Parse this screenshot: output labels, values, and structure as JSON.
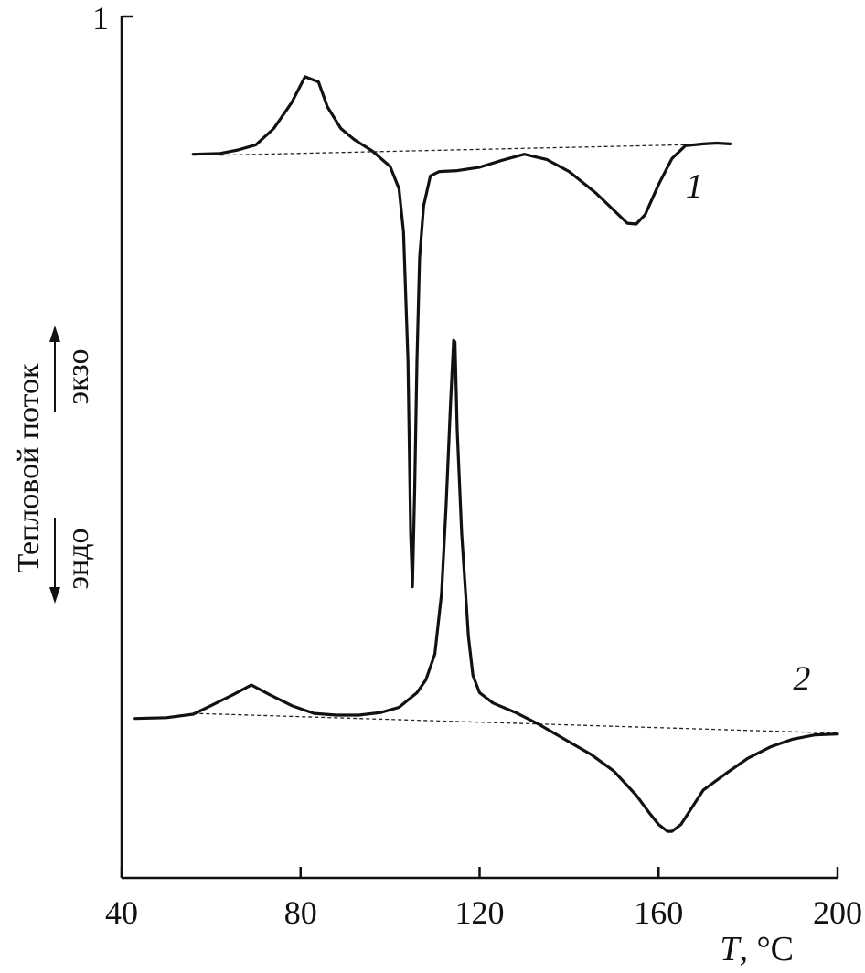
{
  "chart_data": {
    "type": "line",
    "title": "",
    "xlabel_var": "T",
    "xlabel_unit": ", °C",
    "ylabel": "Тепловой поток",
    "y_top_tick": "1",
    "direction_up": "экзо",
    "direction_down": "эндо",
    "xlim": [
      40,
      200
    ],
    "ylim": [
      0,
      100
    ],
    "grid": false,
    "x_ticks": [
      40,
      80,
      120,
      160,
      200
    ],
    "line_color": "#111111",
    "baseline_color": "#222222",
    "series": [
      {
        "name": "1",
        "x": [
          56,
          62,
          66,
          70,
          74,
          78,
          81,
          84,
          86,
          89,
          92,
          96,
          100,
          102,
          103,
          104,
          104.6,
          105,
          105.5,
          106,
          106.6,
          107.5,
          109,
          111,
          115,
          120,
          125,
          130,
          135,
          140,
          146,
          150,
          153,
          155,
          157,
          160,
          163,
          166,
          170,
          173,
          176
        ],
        "y": [
          84,
          84.1,
          84.5,
          85.1,
          87,
          90,
          93,
          92.4,
          89.5,
          87,
          85.7,
          84.4,
          82.6,
          80,
          75,
          60,
          40,
          33.8,
          45,
          60,
          72,
          78,
          81.5,
          82,
          82.1,
          82.5,
          83.3,
          84,
          83.4,
          82,
          79.5,
          77.5,
          76,
          75.9,
          77,
          80.5,
          83.5,
          85,
          85.2,
          85.3,
          85.2
        ]
      },
      {
        "name": "2",
        "x": [
          43,
          50,
          56,
          60,
          65,
          69,
          73,
          78,
          83,
          88,
          93,
          98,
          102,
          106,
          108,
          110,
          111.5,
          112.5,
          113.5,
          114.2,
          114.5,
          115,
          116,
          117.5,
          118.5,
          120,
          123,
          128,
          133,
          140,
          145,
          150,
          155,
          158,
          160,
          162,
          163,
          165,
          167,
          170,
          175,
          180,
          185,
          190,
          195,
          200
        ],
        "y": [
          18.5,
          18.6,
          19,
          20,
          21.3,
          22.4,
          21.3,
          20,
          19.1,
          18.9,
          18.9,
          19.2,
          19.8,
          21.5,
          23,
          26,
          33,
          43,
          55,
          62.4,
          62.2,
          52,
          40,
          28,
          23.5,
          21.5,
          20.3,
          19.2,
          17.9,
          15.8,
          14.3,
          12.4,
          9.6,
          7.5,
          6.2,
          5.4,
          5.4,
          6.2,
          7.8,
          10.2,
          12.1,
          13.9,
          15.2,
          16.1,
          16.6,
          16.7
        ]
      }
    ],
    "baselines": [
      {
        "series": "1",
        "x": [
          62,
          166
        ],
        "y": [
          83.9,
          85.1
        ]
      },
      {
        "series": "2",
        "x": [
          56,
          200
        ],
        "y": [
          19.1,
          16.8
        ]
      }
    ],
    "annotations": [
      {
        "text": "1",
        "series": "1",
        "x": 168,
        "y": 79
      },
      {
        "text": "2",
        "series": "2",
        "x": 192,
        "y": 21.8
      }
    ]
  }
}
